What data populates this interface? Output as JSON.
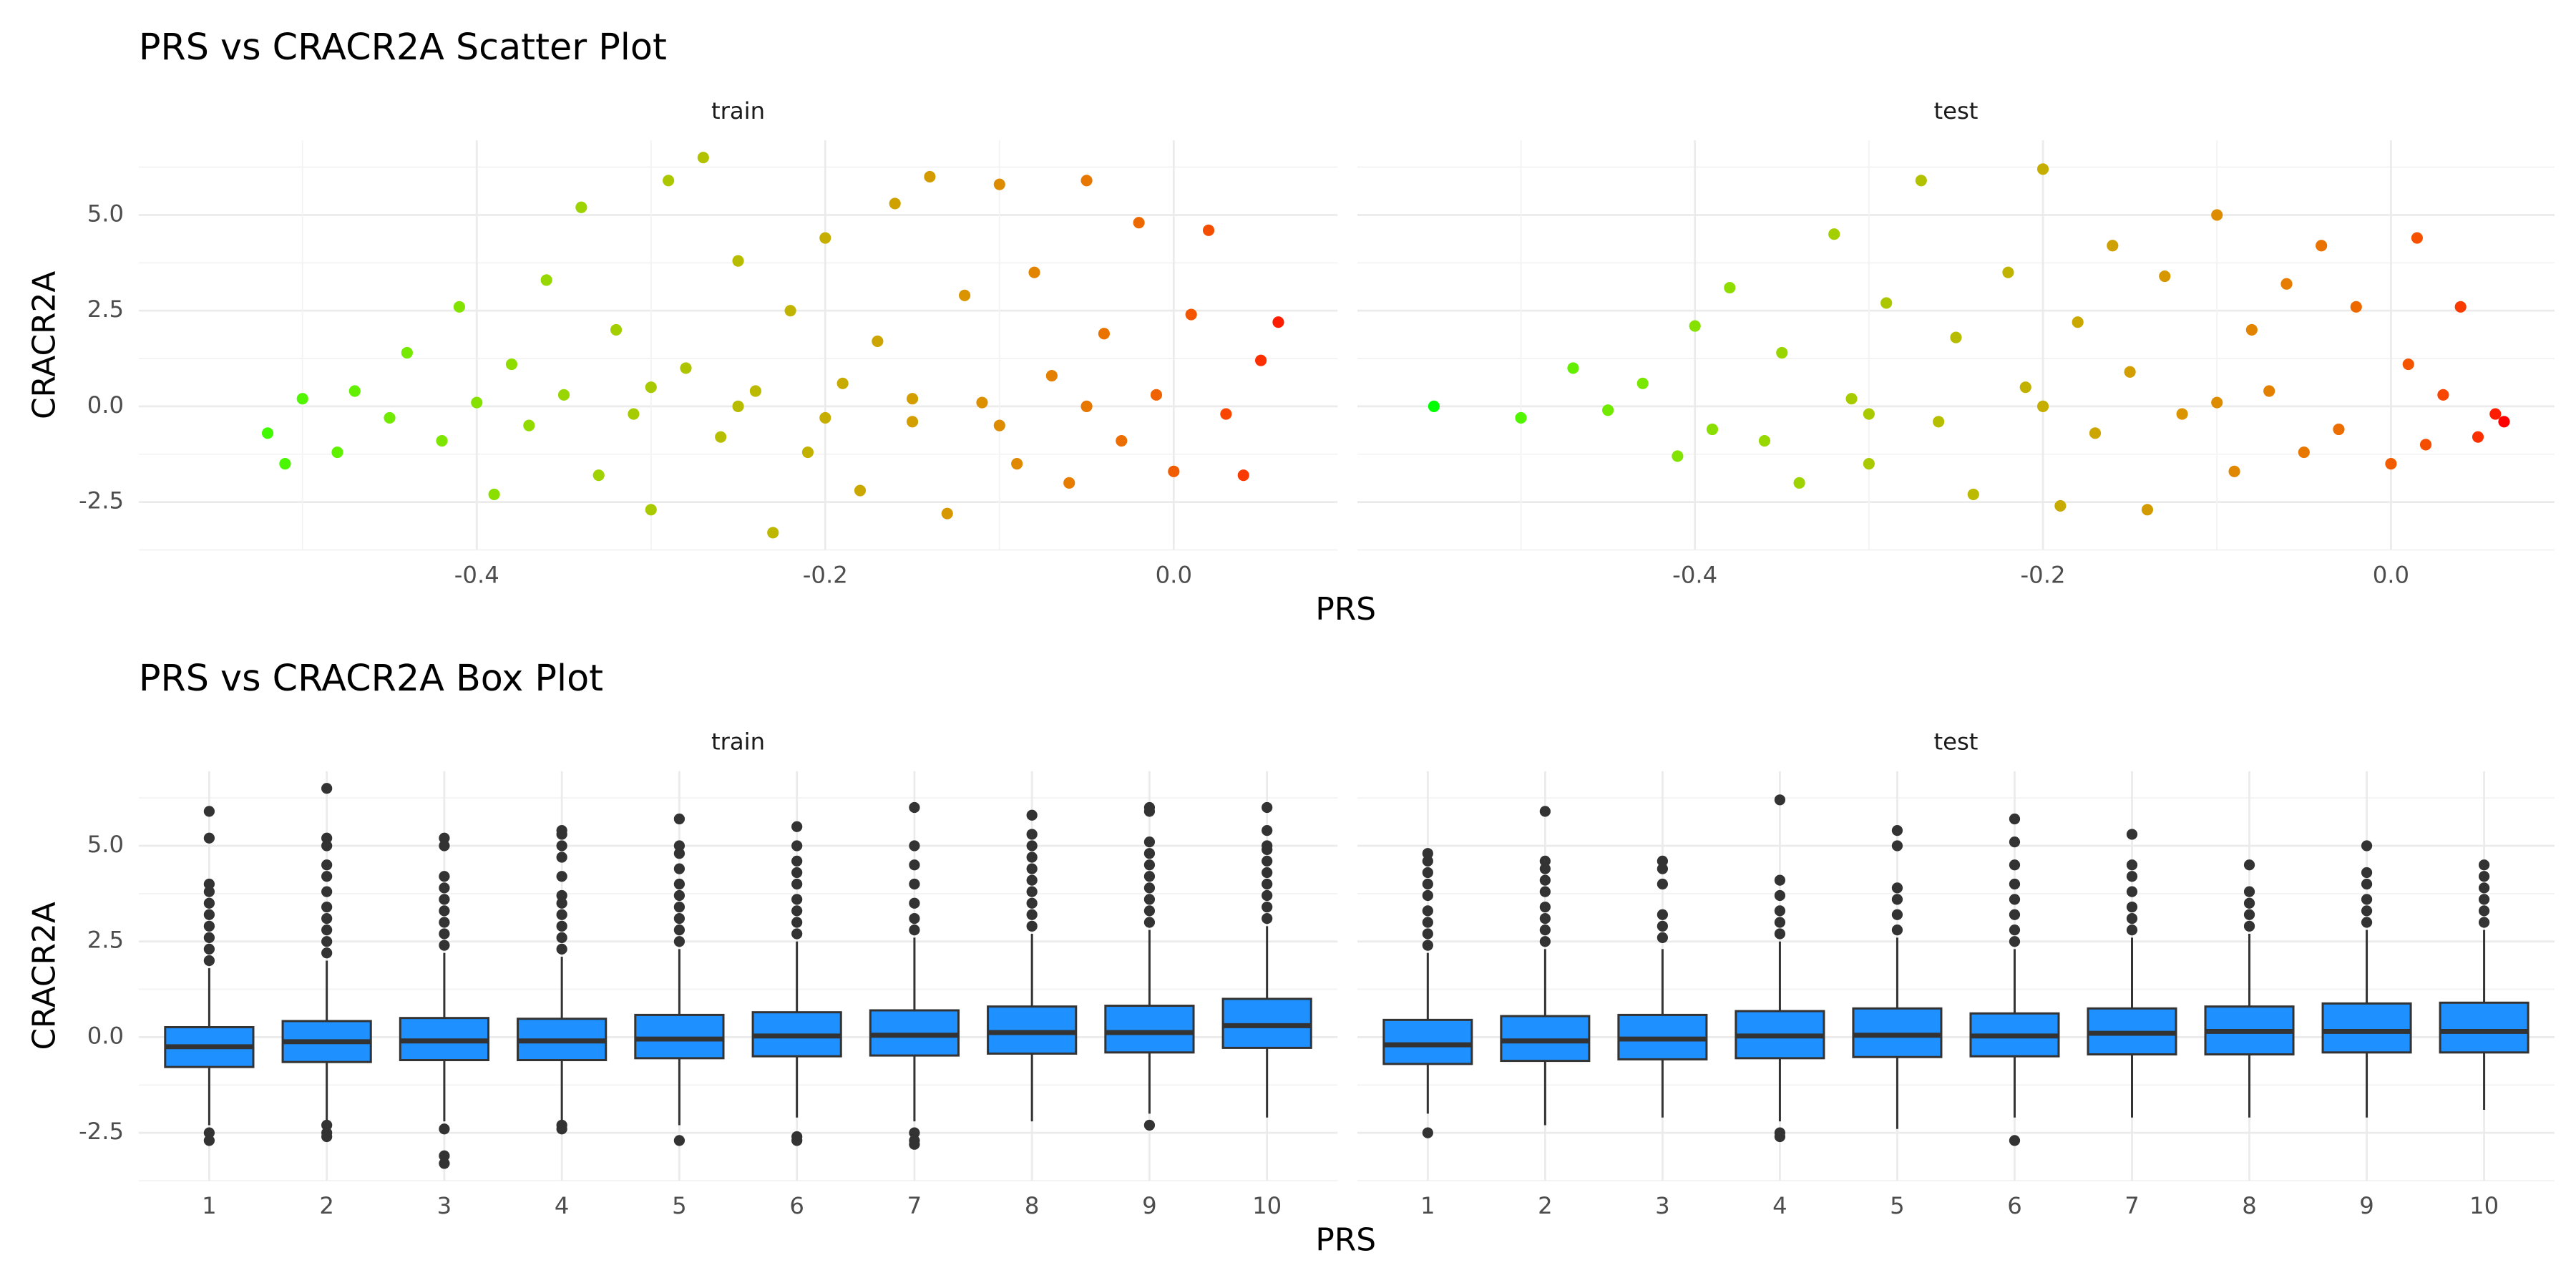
{
  "chart_data": [
    {
      "type": "scatter",
      "title": "PRS vs CRACR2A Scatter Plot",
      "xlabel": "PRS",
      "ylabel": "CRACR2A",
      "xlim": [
        -0.594,
        0.094
      ],
      "ylim": [
        -3.75,
        6.95
      ],
      "xticks": [
        {
          "value": -0.4,
          "label": "-0.4"
        },
        {
          "value": -0.2,
          "label": "-0.2"
        },
        {
          "value": 0,
          "label": "0.0"
        }
      ],
      "yticks": [
        {
          "value": -2.5,
          "label": "-2.5"
        },
        {
          "value": 0,
          "label": "0.0"
        },
        {
          "value": 2.5,
          "label": "2.5"
        },
        {
          "value": 5,
          "label": "5.0"
        }
      ],
      "grid": true,
      "color_low": "#00FF00",
      "color_high": "#FF0000",
      "color_lim": [
        -0.55,
        0.065
      ],
      "panels": [
        {
          "label": "train",
          "x": [
            -0.52,
            -0.51,
            -0.5,
            -0.48,
            -0.47,
            -0.45,
            -0.44,
            -0.42,
            -0.41,
            -0.4,
            -0.39,
            -0.38,
            -0.37,
            -0.36,
            -0.35,
            -0.34,
            -0.33,
            -0.32,
            -0.31,
            -0.3,
            -0.29,
            -0.28,
            -0.27,
            -0.26,
            -0.25,
            -0.24,
            -0.23,
            -0.22,
            -0.21,
            -0.2,
            -0.19,
            -0.18,
            -0.17,
            -0.16,
            -0.15,
            -0.14,
            -0.13,
            -0.12,
            -0.11,
            -0.1,
            -0.09,
            -0.08,
            -0.07,
            -0.06,
            -0.05,
            -0.04,
            -0.03,
            -0.02,
            -0.01,
            0,
            0.01,
            0.02,
            0.03,
            0.04,
            0.05,
            0.06,
            -0.25,
            -0.15,
            -0.05,
            -0.3,
            -0.1,
            -0.2
          ],
          "y": [
            -0.7,
            -1.5,
            0.2,
            -1.2,
            0.4,
            -0.3,
            1.4,
            -0.9,
            2.6,
            0.1,
            -2.3,
            1.1,
            -0.5,
            3.3,
            0.3,
            5.2,
            -1.8,
            2.0,
            -0.2,
            -2.7,
            5.9,
            1.0,
            6.5,
            -0.8,
            3.8,
            0.4,
            -3.3,
            2.5,
            -1.2,
            4.4,
            0.6,
            -2.2,
            1.7,
            5.3,
            -0.4,
            6.0,
            -2.8,
            2.9,
            0.1,
            5.8,
            -1.5,
            3.5,
            0.8,
            -2.0,
            5.9,
            1.9,
            -0.9,
            4.8,
            0.3,
            -1.7,
            2.4,
            4.6,
            -0.2,
            -1.8,
            1.2,
            2.2,
            0.0,
            0.2,
            0.0,
            0.5,
            -0.5,
            -0.3
          ]
        },
        {
          "label": "test",
          "x": [
            -0.55,
            -0.5,
            -0.47,
            -0.45,
            -0.43,
            -0.41,
            -0.4,
            -0.39,
            -0.38,
            -0.36,
            -0.35,
            -0.34,
            -0.32,
            -0.31,
            -0.3,
            -0.29,
            -0.27,
            -0.26,
            -0.25,
            -0.24,
            -0.22,
            -0.21,
            -0.2,
            -0.19,
            -0.18,
            -0.17,
            -0.16,
            -0.15,
            -0.14,
            -0.13,
            -0.12,
            -0.1,
            -0.09,
            -0.08,
            -0.07,
            -0.06,
            -0.05,
            -0.04,
            -0.03,
            -0.02,
            0,
            0.01,
            0.015,
            0.02,
            0.03,
            0.04,
            0.05,
            0.06,
            0.065,
            -0.2,
            -0.1,
            -0.3
          ],
          "y": [
            0,
            -0.3,
            1.0,
            -0.1,
            0.6,
            -1.3,
            2.1,
            -0.6,
            3.1,
            -0.9,
            1.4,
            -2.0,
            4.5,
            0.2,
            -1.5,
            2.7,
            5.9,
            -0.4,
            1.8,
            -2.3,
            3.5,
            0.5,
            6.2,
            -2.6,
            2.2,
            -0.7,
            4.2,
            0.9,
            -2.7,
            3.4,
            -0.2,
            5.0,
            -1.7,
            2.0,
            0.4,
            3.2,
            -1.2,
            4.2,
            -0.6,
            2.6,
            -1.5,
            1.1,
            4.4,
            -1.0,
            0.3,
            2.6,
            -0.8,
            -0.2,
            -0.4,
            0.0,
            0.1,
            -0.2
          ]
        }
      ]
    },
    {
      "type": "box",
      "title": "PRS vs CRACR2A Box Plot",
      "xlabel": "PRS",
      "ylabel": "CRACR2A",
      "categories": [
        "1",
        "2",
        "3",
        "4",
        "5",
        "6",
        "7",
        "8",
        "9",
        "10"
      ],
      "ylim": [
        -3.75,
        6.95
      ],
      "yticks": [
        {
          "value": -2.5,
          "label": "-2.5"
        },
        {
          "value": 0,
          "label": "0.0"
        },
        {
          "value": 2.5,
          "label": "2.5"
        },
        {
          "value": 5,
          "label": "5.0"
        }
      ],
      "grid": true,
      "color": "#1E90FF",
      "panels": [
        {
          "label": "train",
          "boxes": [
            {
              "low": -2.3,
              "q1": -0.78,
              "median": -0.25,
              "q3": 0.26,
              "high": 1.8,
              "outliers": [
                -2.5,
                -2.7,
                2.0,
                2.3,
                2.6,
                2.9,
                3.2,
                3.5,
                3.8,
                4.0,
                5.2,
                5.9
              ]
            },
            {
              "low": -2.2,
              "q1": -0.65,
              "median": -0.12,
              "q3": 0.42,
              "high": 2.0,
              "outliers": [
                -2.3,
                -2.5,
                -2.6,
                2.2,
                2.5,
                2.8,
                3.1,
                3.4,
                3.8,
                4.2,
                4.5,
                5.0,
                5.2,
                6.5
              ]
            },
            {
              "low": -2.2,
              "q1": -0.6,
              "median": -0.1,
              "q3": 0.5,
              "high": 2.2,
              "outliers": [
                -2.4,
                -3.1,
                -3.3,
                2.4,
                2.7,
                3.0,
                3.3,
                3.6,
                3.9,
                4.2,
                5.0,
                5.2
              ]
            },
            {
              "low": -2.2,
              "q1": -0.6,
              "median": -0.1,
              "q3": 0.48,
              "high": 2.1,
              "outliers": [
                -2.3,
                -2.4,
                2.3,
                2.6,
                2.9,
                3.2,
                3.5,
                3.7,
                4.2,
                4.7,
                5.0,
                5.3,
                5.4
              ]
            },
            {
              "low": -2.3,
              "q1": -0.55,
              "median": -0.05,
              "q3": 0.58,
              "high": 2.3,
              "outliers": [
                -2.7,
                2.5,
                2.8,
                3.1,
                3.4,
                3.7,
                4.0,
                4.4,
                4.8,
                5.0,
                5.7
              ]
            },
            {
              "low": -2.1,
              "q1": -0.5,
              "median": 0.03,
              "q3": 0.65,
              "high": 2.5,
              "outliers": [
                -2.6,
                -2.7,
                2.7,
                3.0,
                3.3,
                3.6,
                4.0,
                4.3,
                4.6,
                5.0,
                5.5
              ]
            },
            {
              "low": -2.2,
              "q1": -0.48,
              "median": 0.05,
              "q3": 0.7,
              "high": 2.6,
              "outliers": [
                -2.5,
                -2.7,
                -2.8,
                2.8,
                3.1,
                3.5,
                4.0,
                4.5,
                5.0,
                6.0
              ]
            },
            {
              "low": -2.2,
              "q1": -0.43,
              "median": 0.12,
              "q3": 0.8,
              "high": 2.7,
              "outliers": [
                2.9,
                3.2,
                3.5,
                3.8,
                4.1,
                4.4,
                4.7,
                5.0,
                5.3,
                5.8
              ]
            },
            {
              "low": -2.0,
              "q1": -0.4,
              "median": 0.12,
              "q3": 0.82,
              "high": 2.8,
              "outliers": [
                -2.3,
                3.0,
                3.3,
                3.6,
                3.9,
                4.2,
                4.5,
                4.8,
                5.1,
                5.9,
                6.0
              ]
            },
            {
              "low": -2.1,
              "q1": -0.28,
              "median": 0.3,
              "q3": 1.0,
              "high": 2.9,
              "outliers": [
                3.1,
                3.4,
                3.7,
                4.0,
                4.3,
                4.6,
                4.9,
                5.0,
                5.4,
                6.0
              ]
            }
          ]
        },
        {
          "label": "test",
          "boxes": [
            {
              "low": -2.0,
              "q1": -0.7,
              "median": -0.2,
              "q3": 0.45,
              "high": 2.2,
              "outliers": [
                -2.5,
                2.4,
                2.7,
                3.0,
                3.3,
                3.7,
                4.0,
                4.3,
                4.6,
                4.8
              ]
            },
            {
              "low": -2.3,
              "q1": -0.62,
              "median": -0.1,
              "q3": 0.55,
              "high": 2.3,
              "outliers": [
                2.5,
                2.8,
                3.1,
                3.4,
                3.8,
                4.1,
                4.4,
                4.6,
                5.9
              ]
            },
            {
              "low": -2.1,
              "q1": -0.58,
              "median": -0.05,
              "q3": 0.58,
              "high": 2.3,
              "outliers": [
                2.6,
                2.9,
                3.2,
                4.0,
                4.4,
                4.6
              ]
            },
            {
              "low": -2.2,
              "q1": -0.55,
              "median": 0.03,
              "q3": 0.68,
              "high": 2.5,
              "outliers": [
                -2.5,
                -2.6,
                2.7,
                3.0,
                3.3,
                3.7,
                4.1,
                6.2
              ]
            },
            {
              "low": -2.4,
              "q1": -0.52,
              "median": 0.05,
              "q3": 0.75,
              "high": 2.6,
              "outliers": [
                2.8,
                3.2,
                3.6,
                3.9,
                5.0,
                5.4
              ]
            },
            {
              "low": -2.1,
              "q1": -0.5,
              "median": 0.03,
              "q3": 0.62,
              "high": 2.3,
              "outliers": [
                -2.7,
                2.5,
                2.8,
                3.2,
                3.6,
                4.0,
                4.5,
                5.1,
                5.7
              ]
            },
            {
              "low": -2.1,
              "q1": -0.45,
              "median": 0.1,
              "q3": 0.75,
              "high": 2.6,
              "outliers": [
                2.8,
                3.1,
                3.4,
                3.8,
                4.2,
                4.5,
                5.3
              ]
            },
            {
              "low": -2.1,
              "q1": -0.45,
              "median": 0.15,
              "q3": 0.8,
              "high": 2.7,
              "outliers": [
                2.9,
                3.2,
                3.5,
                3.8,
                4.5
              ]
            },
            {
              "low": -2.1,
              "q1": -0.4,
              "median": 0.15,
              "q3": 0.88,
              "high": 2.8,
              "outliers": [
                3.0,
                3.3,
                3.6,
                4.0,
                4.3,
                5.0
              ]
            },
            {
              "low": -1.9,
              "q1": -0.4,
              "median": 0.15,
              "q3": 0.9,
              "high": 2.8,
              "outliers": [
                3.0,
                3.3,
                3.6,
                3.9,
                4.2,
                4.5
              ]
            }
          ]
        }
      ]
    }
  ]
}
